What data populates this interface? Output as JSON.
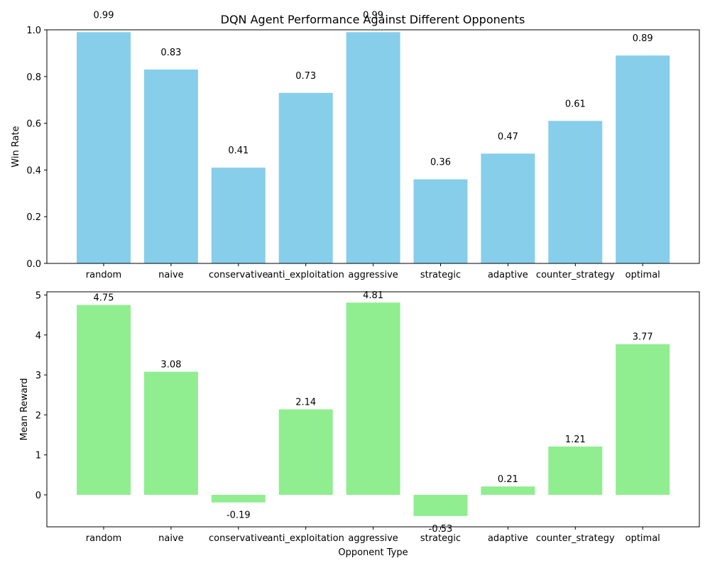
{
  "figure": {
    "title": "DQN Agent Performance Against Different Opponents"
  },
  "chart_data": [
    {
      "type": "bar",
      "title": "DQN Agent Performance Against Different Opponents",
      "xlabel": "",
      "ylabel": "Win Rate",
      "categories": [
        "random",
        "naive",
        "conservative",
        "anti_exploitation",
        "aggressive",
        "strategic",
        "adaptive",
        "counter_strategy",
        "optimal"
      ],
      "values": [
        0.99,
        0.83,
        0.41,
        0.73,
        0.99,
        0.36,
        0.47,
        0.61,
        0.89
      ],
      "value_labels": [
        "0.99",
        "0.83",
        "0.41",
        "0.73",
        "0.99",
        "0.36",
        "0.47",
        "0.61",
        "0.89"
      ],
      "ylim": [
        0,
        1.0
      ],
      "yticks": [
        "0.0",
        "0.2",
        "0.4",
        "0.6",
        "0.8",
        "1.0"
      ],
      "ytick_values": [
        0,
        0.2,
        0.4,
        0.6,
        0.8,
        1.0
      ],
      "bar_color": "#87CEEB",
      "grid": false
    },
    {
      "type": "bar",
      "title": "",
      "xlabel": "Opponent Type",
      "ylabel": "Mean Reward",
      "categories": [
        "random",
        "naive",
        "conservative",
        "anti_exploitation",
        "aggressive",
        "strategic",
        "adaptive",
        "counter_strategy",
        "optimal"
      ],
      "values": [
        4.75,
        3.08,
        -0.19,
        2.14,
        4.81,
        -0.53,
        0.21,
        1.21,
        3.77
      ],
      "value_labels": [
        "4.75",
        "3.08",
        "-0.19",
        "2.14",
        "4.81",
        "-0.53",
        "0.21",
        "1.21",
        "3.77"
      ],
      "ylim": [
        -0.8,
        5.08
      ],
      "yticks": [
        "0",
        "1",
        "2",
        "3",
        "4",
        "5"
      ],
      "ytick_values": [
        0,
        1,
        2,
        3,
        4,
        5
      ],
      "bar_color": "#90EE90",
      "grid": false
    }
  ]
}
